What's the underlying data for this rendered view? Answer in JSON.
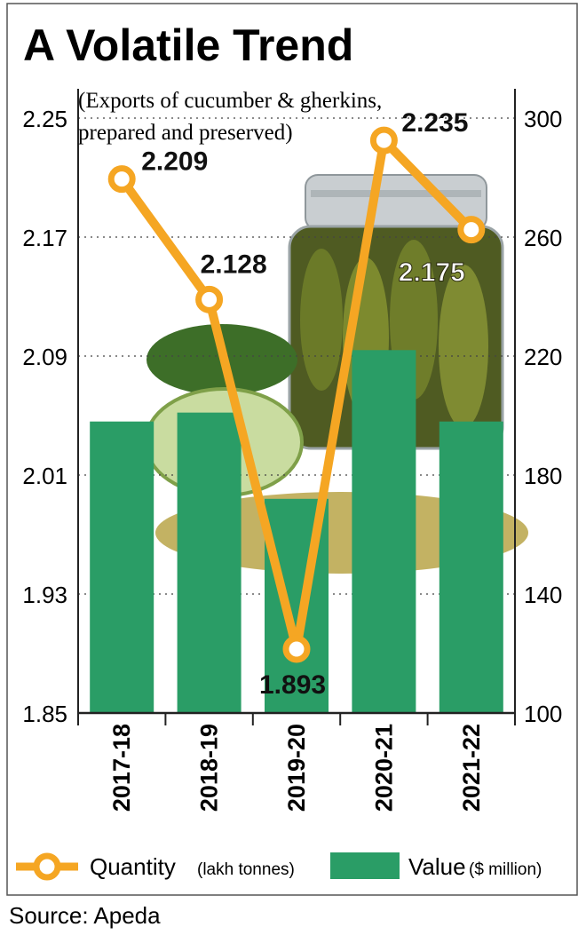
{
  "chart_data": {
    "type": "bar+line",
    "title": "A Volatile Trend",
    "subtitle": [
      "(Exports of cucumber & gherkins,",
      "prepared and preserved)"
    ],
    "categories": [
      "2017-18",
      "2018-19",
      "2019-20",
      "2020-21",
      "2021-22"
    ],
    "series": [
      {
        "name": "Quantity",
        "unit": "(lakh tonnes)",
        "type": "line",
        "axis": "left",
        "values": [
          2.209,
          2.128,
          1.893,
          2.235,
          2.175
        ],
        "labels": [
          "2.209",
          "2.128",
          "1.893",
          "2.235",
          "2.175"
        ],
        "color": "#f5a623"
      },
      {
        "name": "Value",
        "unit": "($ million)",
        "type": "bar",
        "axis": "right",
        "values": [
          198,
          201,
          172,
          222,
          198
        ],
        "color": "#2a9d66"
      }
    ],
    "y_left": {
      "ylim": [
        1.85,
        2.25
      ],
      "ticks": [
        "2.25",
        "2.17",
        "2.09",
        "2.01",
        "1.93",
        "1.85"
      ]
    },
    "y_right": {
      "ylim": [
        100,
        300
      ],
      "ticks": [
        "300",
        "260",
        "220",
        "180",
        "140",
        "100"
      ]
    },
    "grid": "dotted horizontal",
    "legend": "bottom"
  },
  "legend": {
    "quantity_label": "Quantity",
    "quantity_unit": "(lakh tonnes)",
    "value_label": "Value",
    "value_unit": "($ million)"
  },
  "source": "Source: Apeda",
  "colors": {
    "line": "#f5a623",
    "bar": "#2a9d66",
    "text": "#111111"
  }
}
